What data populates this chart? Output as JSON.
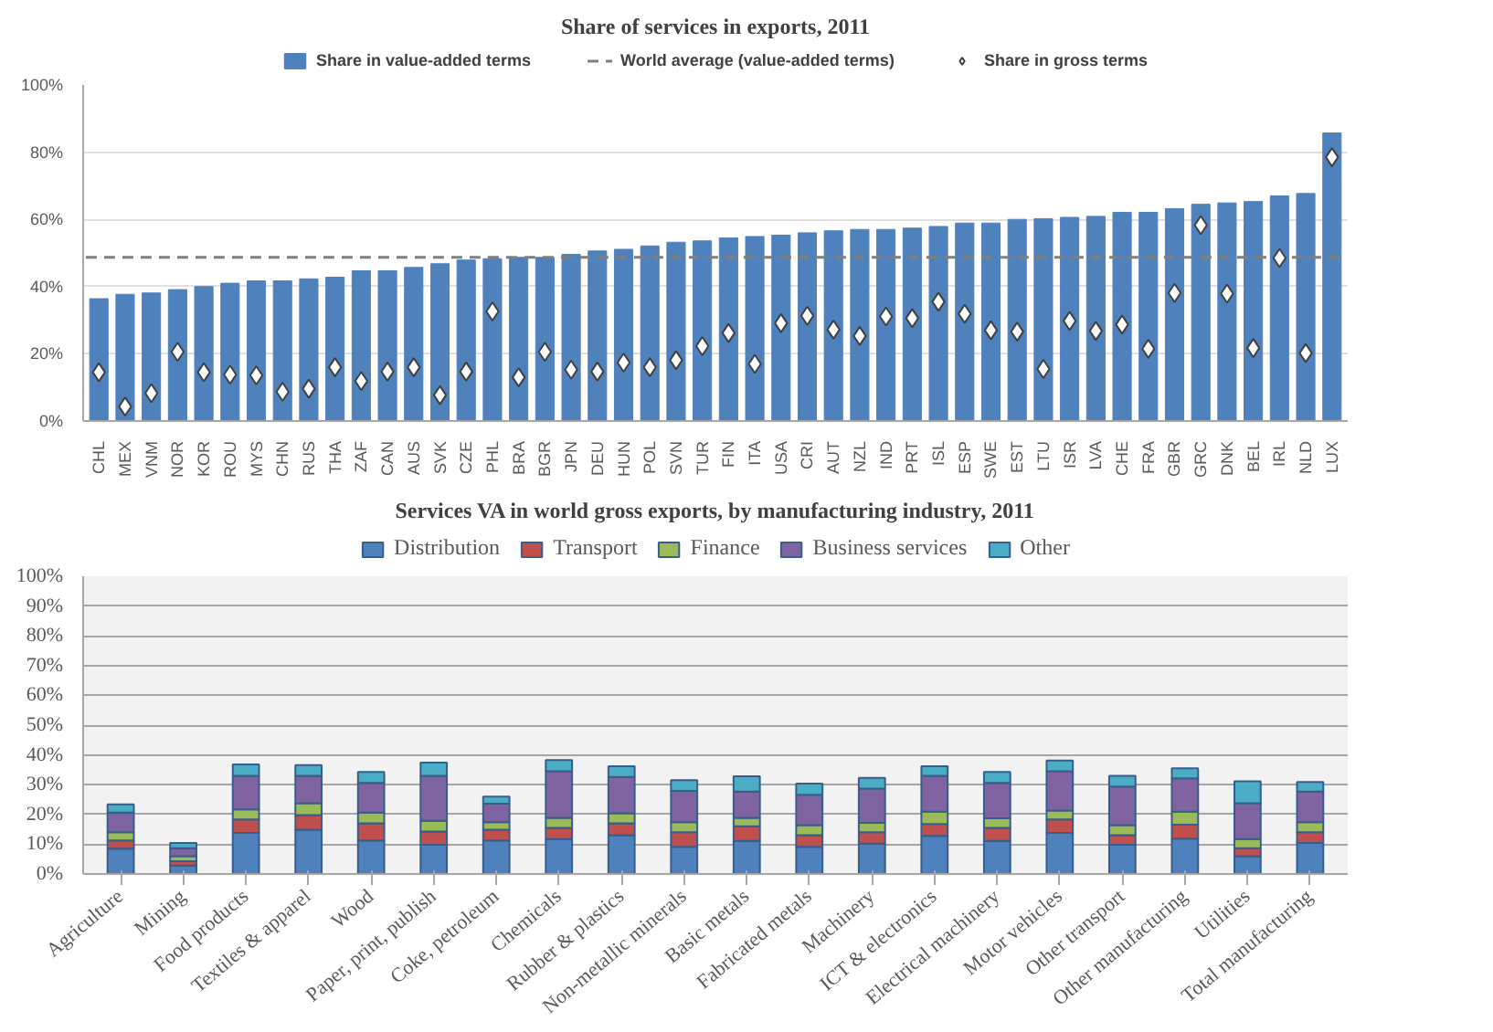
{
  "chart_data": [
    {
      "type": "bar",
      "title": "Share of services in exports, 2011",
      "categories": [
        "CHL",
        "MEX",
        "VNM",
        "NOR",
        "KOR",
        "ROU",
        "MYS",
        "CHN",
        "RUS",
        "THA",
        "ZAF",
        "CAN",
        "AUS",
        "SVK",
        "CZE",
        "PHL",
        "BRA",
        "BGR",
        "JPN",
        "DEU",
        "HUN",
        "POL",
        "SVN",
        "TUR",
        "FIN",
        "ITA",
        "USA",
        "CRI",
        "AUT",
        "NZL",
        "IND",
        "PRT",
        "ISL",
        "ESP",
        "SWE",
        "EST",
        "LTU",
        "ISR",
        "LVA",
        "CHE",
        "FRA",
        "GBR",
        "GRC",
        "DNK",
        "BEL",
        "IRL",
        "NLD",
        "LUX"
      ],
      "series": [
        {
          "name": "Share in value-added terms",
          "type": "bar",
          "color": "#4f81bd",
          "values": [
            36.4,
            37.7,
            38.1,
            39.1,
            40,
            41,
            41.7,
            41.7,
            42.3,
            42.8,
            44.7,
            44.7,
            45.7,
            46.8,
            47.9,
            48.3,
            48.7,
            48.7,
            49.6,
            50.6,
            51.1,
            52.1,
            53.2,
            53.6,
            54.5,
            54.9,
            55.3,
            56,
            56.6,
            57,
            57,
            57.4,
            57.9,
            58.9,
            58.9,
            60,
            60.2,
            60.6,
            60.9,
            62.1,
            62.1,
            63.2,
            64.5,
            64.9,
            65.3,
            67,
            67.7,
            85.7
          ]
        },
        {
          "name": "Share in gross terms",
          "type": "scatter",
          "marker": "diamond",
          "color": "#ffffff",
          "values": [
            14.5,
            4.3,
            8.3,
            20.6,
            14.5,
            13.8,
            13.6,
            8.7,
            9.6,
            16,
            11.9,
            14.7,
            16,
            7.7,
            14.7,
            32.6,
            13,
            20.6,
            15.3,
            14.7,
            17.4,
            16,
            18.1,
            22.3,
            26.2,
            17,
            29.1,
            31.3,
            27.2,
            25.3,
            31.1,
            30.6,
            35.5,
            31.9,
            27,
            26.6,
            15.5,
            29.8,
            26.8,
            28.7,
            21.5,
            38.1,
            58.3,
            37.9,
            21.7,
            48.5,
            20.2,
            78.5
          ]
        }
      ],
      "ref_lines": [
        {
          "axis": "y",
          "value": 48.7,
          "label": "World average (value-added terms)",
          "color": "#7f7f7f",
          "line_style": "dashed"
        }
      ],
      "ylim": [
        0,
        100
      ],
      "yticks": [
        {
          "value": 0,
          "label": "0%"
        },
        {
          "value": 20,
          "label": "20%"
        },
        {
          "value": 40,
          "label": "40%"
        },
        {
          "value": 60,
          "label": "60%"
        },
        {
          "value": 80,
          "label": "80%"
        },
        {
          "value": 100,
          "label": "100%"
        }
      ],
      "grid": "y",
      "legend": "top"
    },
    {
      "type": "bar",
      "title": "Services VA in world gross exports, by manufacturing industry, 2011",
      "stacked": true,
      "categories": [
        "Agriculture",
        "Mining",
        "Food products",
        "Textiles & apparel",
        "Wood",
        "Paper, print, publish",
        "Coke, petroleum",
        "Chemicals",
        "Rubber & plastics",
        "Non-metallic minerals",
        "Basic metals",
        "Fabricated metals",
        "Machinery",
        "ICT & electronics",
        "Electrical machinery",
        "Motor vehicles",
        "Other transport",
        "Other manufacturing",
        "Utilities",
        "Total manufacturing"
      ],
      "series": [
        {
          "name": "Distribution",
          "color": "#4f81bd",
          "values": [
            8.5,
            2.8,
            13.8,
            14.9,
            11.3,
            9.8,
            11.3,
            11.7,
            13,
            9.1,
            11.1,
            9.1,
            10.2,
            12.8,
            11.1,
            13.8,
            9.8,
            11.9,
            6,
            10.4
          ]
        },
        {
          "name": "Transport",
          "color": "#c0504d",
          "values": [
            2.8,
            1.5,
            4.5,
            4.9,
            5.7,
            4.5,
            3.6,
            3.8,
            4,
            4.9,
            4.9,
            3.9,
            3.8,
            4,
            4.4,
            4.5,
            3.2,
            4.7,
            2.7,
            3.6
          ]
        },
        {
          "name": "Finance",
          "color": "#9bbb59",
          "values": [
            2.7,
            1.7,
            3.4,
            4,
            3.6,
            3.6,
            2.5,
            3.4,
            3.4,
            3.4,
            2.9,
            3.4,
            3.2,
            4.1,
            3.2,
            3,
            3.4,
            4.3,
            3,
            3.4
          ]
        },
        {
          "name": "Business services",
          "color": "#8064a2",
          "values": [
            6.6,
            2.7,
            11.3,
            9.2,
            10,
            15.1,
            6.2,
            15.6,
            12.2,
            10.5,
            8.8,
            10.2,
            11.5,
            12.1,
            11.9,
            13.2,
            13,
            11.2,
            12.1,
            10.3
          ]
        },
        {
          "name": "Other",
          "color": "#4bacc6",
          "values": [
            2.8,
            1.7,
            3.8,
            3.6,
            3.7,
            4.4,
            2.4,
            3.8,
            3.6,
            3.6,
            5.1,
            3.8,
            3.6,
            3.2,
            3.7,
            3.6,
            3.6,
            3.4,
            7.3,
            3.2
          ]
        }
      ],
      "ylim": [
        0,
        100
      ],
      "yticks": [
        {
          "value": 0,
          "label": "0%"
        },
        {
          "value": 10,
          "label": "10%"
        },
        {
          "value": 20,
          "label": "20%"
        },
        {
          "value": 30,
          "label": "30%"
        },
        {
          "value": 40,
          "label": "40%"
        },
        {
          "value": 50,
          "label": "50%"
        },
        {
          "value": 60,
          "label": "60%"
        },
        {
          "value": 70,
          "label": "70%"
        },
        {
          "value": 80,
          "label": "80%"
        },
        {
          "value": 90,
          "label": "90%"
        },
        {
          "value": 100,
          "label": "100%"
        }
      ],
      "grid": "y",
      "legend": "top"
    }
  ]
}
